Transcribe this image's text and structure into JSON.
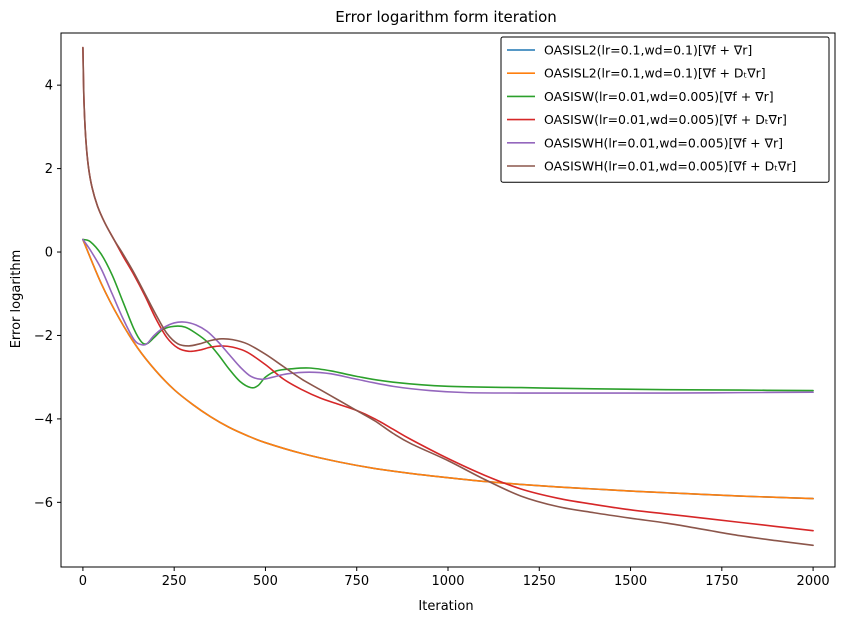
{
  "chart_data": {
    "type": "line",
    "title": "Error logarithm form iteration",
    "xlabel": "Iteration",
    "ylabel": "Error logarithm",
    "xlim": [
      -60,
      2060
    ],
    "ylim": [
      -7.55,
      5.25
    ],
    "xticks": [
      0,
      250,
      500,
      750,
      1000,
      1250,
      1500,
      1750,
      2000
    ],
    "yticks": [
      4,
      2,
      0,
      -2,
      -4,
      -6
    ],
    "ytick_labels": [
      "4",
      "2",
      "0",
      "−2",
      "−4",
      "−6"
    ],
    "grid": false,
    "legend_position": "top-right",
    "series": [
      {
        "name": "OASISL2(lr=0.1,wd=0.1)[∇f + ∇r]",
        "color": "#1f77b4",
        "x": [
          0,
          50,
          100,
          150,
          200,
          250,
          300,
          350,
          400,
          450,
          500,
          600,
          700,
          800,
          900,
          1000,
          1100,
          1200,
          1300,
          1400,
          1500,
          1600,
          1700,
          1800,
          1900,
          2000
        ],
        "y": [
          0.3,
          -0.75,
          -1.6,
          -2.3,
          -2.85,
          -3.3,
          -3.65,
          -3.95,
          -4.2,
          -4.4,
          -4.57,
          -4.83,
          -5.03,
          -5.19,
          -5.31,
          -5.41,
          -5.5,
          -5.57,
          -5.63,
          -5.68,
          -5.73,
          -5.77,
          -5.81,
          -5.85,
          -5.88,
          -5.91
        ]
      },
      {
        "name": "OASISL2(lr=0.1,wd=0.1)[∇f + Dₜ∇r]",
        "color": "#ff7f0e",
        "x": [
          0,
          50,
          100,
          150,
          200,
          250,
          300,
          350,
          400,
          450,
          500,
          600,
          700,
          800,
          900,
          1000,
          1100,
          1200,
          1300,
          1400,
          1500,
          1600,
          1700,
          1800,
          1900,
          2000
        ],
        "y": [
          0.3,
          -0.75,
          -1.6,
          -2.3,
          -2.85,
          -3.3,
          -3.65,
          -3.95,
          -4.2,
          -4.4,
          -4.57,
          -4.83,
          -5.03,
          -5.19,
          -5.31,
          -5.41,
          -5.5,
          -5.57,
          -5.63,
          -5.68,
          -5.73,
          -5.77,
          -5.81,
          -5.85,
          -5.88,
          -5.91
        ]
      },
      {
        "name": "OASISW(lr=0.01,wd=0.005)[∇f + ∇r]",
        "color": "#2ca02c",
        "x": [
          0,
          20,
          50,
          80,
          110,
          140,
          160,
          175,
          195,
          220,
          250,
          280,
          310,
          340,
          370,
          400,
          430,
          460,
          480,
          500,
          530,
          570,
          620,
          680,
          750,
          850,
          1000,
          1200,
          1400,
          1600,
          1800,
          2000
        ],
        "y": [
          0.3,
          0.25,
          -0.05,
          -0.55,
          -1.2,
          -1.85,
          -2.15,
          -2.2,
          -2.05,
          -1.85,
          -1.78,
          -1.8,
          -1.95,
          -2.15,
          -2.45,
          -2.8,
          -3.1,
          -3.25,
          -3.2,
          -3.0,
          -2.85,
          -2.8,
          -2.78,
          -2.85,
          -2.98,
          -3.12,
          -3.22,
          -3.25,
          -3.28,
          -3.3,
          -3.31,
          -3.32
        ]
      },
      {
        "name": "OASISW(lr=0.01,wd=0.005)[∇f + Dₜ∇r]",
        "color": "#d62728",
        "x": [
          0,
          3,
          8,
          15,
          25,
          40,
          60,
          85,
          110,
          140,
          170,
          200,
          230,
          260,
          290,
          320,
          350,
          380,
          410,
          450,
          500,
          550,
          600,
          650,
          700,
          750,
          800,
          850,
          900,
          1000,
          1100,
          1200,
          1300,
          1400,
          1500,
          1600,
          1700,
          1800,
          1900,
          2000
        ],
        "y": [
          4.9,
          3.6,
          2.7,
          2.05,
          1.55,
          1.1,
          0.7,
          0.3,
          -0.1,
          -0.55,
          -1.05,
          -1.6,
          -2.05,
          -2.3,
          -2.38,
          -2.35,
          -2.28,
          -2.25,
          -2.28,
          -2.4,
          -2.7,
          -3.05,
          -3.3,
          -3.5,
          -3.65,
          -3.8,
          -4.0,
          -4.25,
          -4.5,
          -4.95,
          -5.35,
          -5.68,
          -5.9,
          -6.05,
          -6.18,
          -6.28,
          -6.38,
          -6.48,
          -6.58,
          -6.68
        ]
      },
      {
        "name": "OASISWH(lr=0.01,wd=0.005)[∇f + ∇r]",
        "color": "#9467bd",
        "x": [
          0,
          20,
          50,
          80,
          110,
          140,
          160,
          175,
          195,
          220,
          250,
          280,
          310,
          340,
          370,
          400,
          430,
          460,
          490,
          520,
          560,
          620,
          680,
          750,
          850,
          950,
          1050,
          1200,
          1400,
          1600,
          1800,
          2000
        ],
        "y": [
          0.3,
          0.05,
          -0.4,
          -1.0,
          -1.6,
          -2.1,
          -2.22,
          -2.2,
          -2.0,
          -1.82,
          -1.7,
          -1.68,
          -1.75,
          -1.9,
          -2.15,
          -2.45,
          -2.75,
          -2.98,
          -3.05,
          -3.0,
          -2.92,
          -2.88,
          -2.92,
          -3.05,
          -3.22,
          -3.32,
          -3.37,
          -3.38,
          -3.38,
          -3.38,
          -3.37,
          -3.36
        ]
      },
      {
        "name": "OASISWH(lr=0.01,wd=0.005)[∇f + Dₜ∇r]",
        "color": "#8c564b",
        "x": [
          0,
          3,
          8,
          15,
          25,
          40,
          60,
          85,
          110,
          140,
          170,
          200,
          230,
          260,
          290,
          320,
          350,
          380,
          410,
          450,
          500,
          550,
          600,
          650,
          700,
          750,
          800,
          850,
          900,
          1000,
          1100,
          1200,
          1300,
          1400,
          1500,
          1600,
          1700,
          1800,
          1900,
          2000
        ],
        "y": [
          4.9,
          3.6,
          2.7,
          2.05,
          1.55,
          1.1,
          0.7,
          0.3,
          -0.05,
          -0.5,
          -1.0,
          -1.5,
          -1.95,
          -2.2,
          -2.25,
          -2.2,
          -2.12,
          -2.08,
          -2.1,
          -2.2,
          -2.45,
          -2.75,
          -3.05,
          -3.3,
          -3.55,
          -3.8,
          -4.05,
          -4.35,
          -4.6,
          -5.0,
          -5.45,
          -5.85,
          -6.1,
          -6.25,
          -6.38,
          -6.5,
          -6.65,
          -6.8,
          -6.92,
          -7.03
        ]
      }
    ]
  }
}
